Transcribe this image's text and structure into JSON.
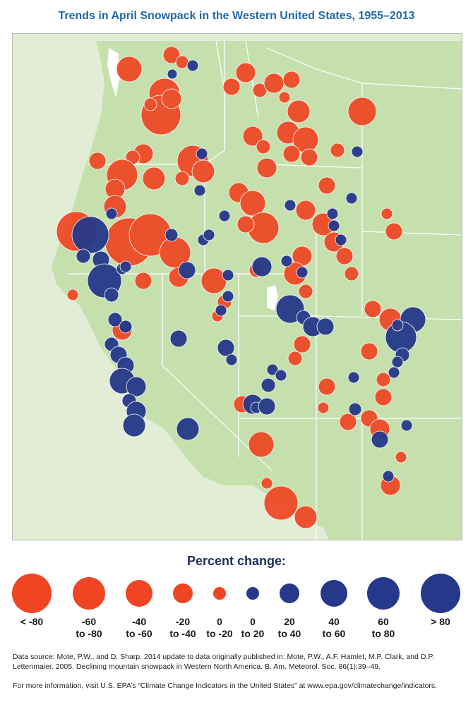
{
  "title": "Trends in April Snowpack in the Western United States, 1955–2013",
  "colors": {
    "decline": "#f04523",
    "increase": "#25388a",
    "land": "#c5e0ad",
    "background": "#e3edd6",
    "ocean": "#ffffff",
    "lake": "#ffffff",
    "border": "#ffffff"
  },
  "legend": {
    "title": "Percent change:",
    "items": [
      {
        "line1": "< -80",
        "line2": "",
        "color": "#f04523",
        "size": "largest"
      },
      {
        "line1": "-60",
        "line2": "to -80",
        "color": "#f04523",
        "size": "large"
      },
      {
        "line1": "-40",
        "line2": "to -60",
        "color": "#f04523",
        "size": "medium"
      },
      {
        "line1": "-20",
        "line2": "to -40",
        "color": "#f04523",
        "size": "small"
      },
      {
        "line1": "0",
        "line2": "to -20",
        "color": "#f04523",
        "size": "smallest"
      },
      {
        "line1": "0",
        "line2": "to 20",
        "color": "#25388a",
        "size": "smallest"
      },
      {
        "line1": "20",
        "line2": "to 40",
        "color": "#25388a",
        "size": "small"
      },
      {
        "line1": "40",
        "line2": "to 60",
        "color": "#25388a",
        "size": "medium"
      },
      {
        "line1": "60",
        "line2": "to 80",
        "color": "#25388a",
        "size": "large"
      },
      {
        "line1": "> 80",
        "line2": "",
        "color": "#25388a",
        "size": "largest"
      }
    ]
  },
  "source_text": "Data source: Mote, P.W., and D. Sharp. 2014 update to data originally published in: Mote, P.W., A.F. Hamlet, M.P. Clark, and D.P. Lettenmaier. 2005. Declining mountain snowpack in Western North America. B. Am. Meteorol. Soc. 86(1):39–49.",
  "more_info_text": "For more information, visit U.S. EPA’s “Climate Change Indicators in the United States” at www.epa.gov/climatechange/indicators."
}
